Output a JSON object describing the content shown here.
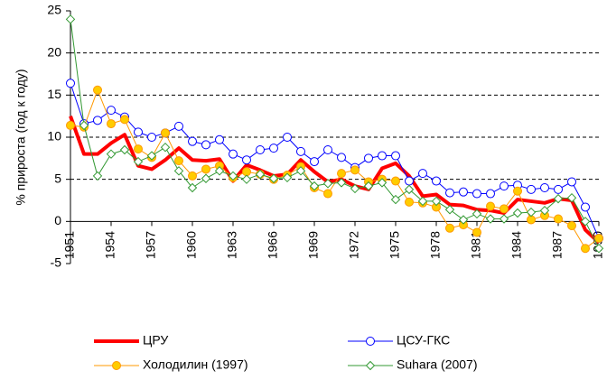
{
  "chart_data": {
    "type": "line",
    "ylabel": "% прироста (год к году)",
    "x": [
      1951,
      1952,
      1953,
      1954,
      1955,
      1956,
      1957,
      1958,
      1959,
      1960,
      1961,
      1962,
      1963,
      1964,
      1965,
      1966,
      1967,
      1968,
      1969,
      1970,
      1971,
      1972,
      1973,
      1974,
      1975,
      1976,
      1977,
      1978,
      1979,
      1980,
      1981,
      1982,
      1983,
      1984,
      1985,
      1986,
      1987,
      1988,
      1989,
      1990
    ],
    "xlim": [
      1951,
      1990
    ],
    "xticks": [
      1951,
      1954,
      1957,
      1960,
      1963,
      1966,
      1969,
      1972,
      1975,
      1978,
      1981,
      1984,
      1987,
      1990
    ],
    "ylim": [
      -5,
      25
    ],
    "yticks": [
      -5,
      0,
      5,
      10,
      15,
      20,
      25
    ],
    "grid": true,
    "legend": "bottom",
    "series": [
      {
        "name": "ЦРУ",
        "color": "#ff0000",
        "marker": "none",
        "values": [
          12.5,
          8,
          8,
          9.3,
          10.3,
          6.6,
          6.2,
          7.3,
          8.7,
          7.3,
          7.2,
          7.4,
          4.8,
          6.7,
          6.1,
          5.4,
          5.6,
          7.3,
          5.9,
          4.7,
          5.0,
          4.2,
          3.8,
          6.3,
          6.9,
          5.4,
          3.0,
          3.2,
          2.0,
          1.9,
          1.4,
          1.3,
          1.0,
          2.6,
          2.4,
          2.2,
          2.7,
          2.5,
          -1.0,
          -2.5
        ]
      },
      {
        "name": "ЦСУ-ГКС",
        "color": "#0000ff",
        "marker": "circle",
        "values": [
          16.4,
          11.6,
          12.0,
          13.2,
          12.4,
          10.6,
          10.0,
          10.5,
          11.3,
          9.5,
          9.1,
          9.7,
          8.0,
          7.3,
          8.5,
          8.7,
          10.0,
          8.3,
          7.1,
          8.5,
          7.6,
          6.4,
          7.5,
          7.8,
          7.8,
          4.8,
          5.7,
          4.8,
          3.4,
          3.5,
          3.3,
          3.3,
          4.2,
          4.3,
          3.8,
          4.0,
          3.8,
          4.7,
          1.7,
          -2.0
        ]
      },
      {
        "name": "Холодилин (1997)",
        "color": "#ff9900",
        "marker": "dot",
        "values": [
          11.4,
          11.2,
          15.6,
          11.6,
          12.1,
          8.6,
          7.6,
          10.5,
          7.2,
          5.4,
          6.2,
          6.6,
          5.2,
          5.9,
          5.6,
          5.0,
          5.5,
          6.5,
          4.0,
          3.3,
          5.7,
          6.1,
          4.7,
          5.0,
          4.8,
          2.3,
          2.2,
          1.7,
          -0.8,
          -0.4,
          -1.3,
          1.8,
          1.5,
          3.6,
          0.2,
          0.7,
          0.3,
          -0.5,
          -3.2,
          -2.0
        ]
      },
      {
        "name": "Suhara (2007)",
        "color": "#339933",
        "marker": "diamond",
        "values": [
          24.0,
          11.4,
          5.4,
          8.0,
          8.5,
          7.1,
          7.8,
          8.8,
          6.0,
          4.0,
          5.1,
          6.0,
          5.4,
          5.0,
          5.6,
          5.1,
          5.2,
          6.0,
          4.2,
          4.5,
          4.6,
          3.9,
          4.2,
          4.6,
          2.6,
          3.8,
          2.4,
          2.4,
          1.4,
          0.2,
          0.9,
          0.3,
          0.3,
          1.0,
          1.1,
          1.3,
          2.7,
          2.8,
          0.0,
          -3.2
        ]
      }
    ]
  }
}
